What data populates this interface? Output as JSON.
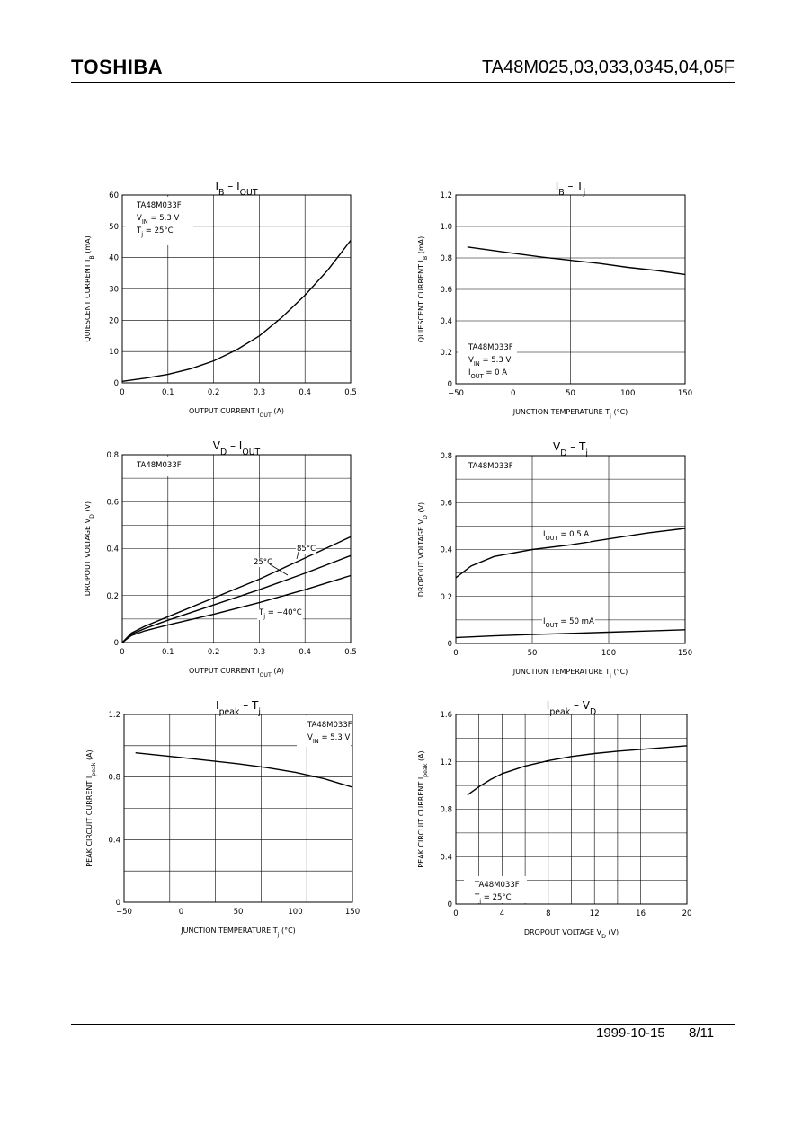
{
  "header": {
    "brand": "TOSHIBA",
    "part_numbers": "TA48M025,03,033,0345,04,05F"
  },
  "footer": {
    "date": "1999-10-15",
    "page": "8/11"
  },
  "chart_data": [
    {
      "type": "line",
      "title": {
        "main": "I",
        "sub": "B",
        "sep": " – ",
        "main2": "I",
        "sub2": "OUT"
      },
      "xlabel": "OUTPUT  CURRENT  I",
      "xlabel_sub": "OUT",
      "xlabel_unit": "(A)",
      "ylabel": "QUIESCENT CURRENT  I",
      "ylabel_sub": "B",
      "ylabel_unit": "(mA)",
      "xlim": [
        0,
        0.5
      ],
      "ylim": [
        0,
        60
      ],
      "xticks": [
        0,
        0.1,
        0.2,
        0.3,
        0.4,
        0.5
      ],
      "yticks": [
        0,
        10,
        20,
        30,
        40,
        50,
        60
      ],
      "x_tick_labels": [
        "0",
        "0.1",
        "0.2",
        "0.3",
        "0.4",
        "0.5"
      ],
      "y_tick_labels": [
        "0",
        "10",
        "20",
        "30",
        "40",
        "50",
        "60"
      ],
      "annotation": [
        "TA48M033F",
        "V_IN = 5.3 V",
        "Tj = 25°C"
      ],
      "series": [
        {
          "x": [
            0,
            0.05,
            0.1,
            0.15,
            0.2,
            0.25,
            0.3,
            0.35,
            0.4,
            0.45,
            0.5
          ],
          "y": [
            0.5,
            1.5,
            2.7,
            4.5,
            7,
            10.5,
            15,
            21,
            28,
            36,
            45.5
          ]
        }
      ]
    },
    {
      "type": "line",
      "title": {
        "main": "I",
        "sub": "B",
        "sep": " – ",
        "main2": "T",
        "sub2": "j"
      },
      "xlabel": "JUNCTION TEMPERATURE  T",
      "xlabel_sub": "j",
      "xlabel_unit": "(°C)",
      "ylabel": "QUIESCENT CURRENT  I",
      "ylabel_sub": "B",
      "ylabel_unit": "(mA)",
      "xlim": [
        -50,
        150
      ],
      "ylim": [
        0,
        1.2
      ],
      "xticks": [
        -50,
        0,
        50,
        100,
        150
      ],
      "yticks": [
        0,
        0.2,
        0.4,
        0.6,
        0.8,
        1.0,
        1.2
      ],
      "x_tick_labels": [
        "−50",
        "0",
        "50",
        "100",
        "150"
      ],
      "y_tick_labels": [
        "0",
        "0.2",
        "0.4",
        "0.6",
        "0.8",
        "1.0",
        "1.2"
      ],
      "annotation": [
        "TA48M033F",
        "V_IN = 5.3 V",
        "I_OUT = 0 A"
      ],
      "series": [
        {
          "x": [
            -40,
            -20,
            0,
            25,
            50,
            75,
            100,
            125,
            150
          ],
          "y": [
            0.87,
            0.85,
            0.83,
            0.805,
            0.785,
            0.765,
            0.74,
            0.72,
            0.695
          ]
        }
      ]
    },
    {
      "type": "line",
      "title": {
        "main": "V",
        "sub": "D",
        "sep": " – ",
        "main2": "I",
        "sub2": "OUT"
      },
      "xlabel": "OUTPUT  CURRENT  I",
      "xlabel_sub": "OUT",
      "xlabel_unit": "(A)",
      "ylabel": "DROPOUT VOLTAGE  V",
      "ylabel_sub": "D",
      "ylabel_unit": "(V)",
      "xlim": [
        0,
        0.5
      ],
      "ylim": [
        0,
        0.8
      ],
      "xticks": [
        0,
        0.1,
        0.2,
        0.3,
        0.4,
        0.5
      ],
      "yticks": [
        0,
        0.2,
        0.4,
        0.6,
        0.8
      ],
      "x_tick_labels": [
        "0",
        "0.1",
        "0.2",
        "0.3",
        "0.4",
        "0.5"
      ],
      "y_tick_labels": [
        "0",
        "0.2",
        "0.4",
        "0.6",
        "0.8"
      ],
      "annotation": [
        "TA48M033F"
      ],
      "series": [
        {
          "name": "85°C",
          "x": [
            0,
            0.02,
            0.05,
            0.1,
            0.2,
            0.3,
            0.4,
            0.5
          ],
          "y": [
            0,
            0.04,
            0.07,
            0.11,
            0.19,
            0.27,
            0.36,
            0.45
          ]
        },
        {
          "name": "25°C",
          "x": [
            0,
            0.02,
            0.05,
            0.1,
            0.2,
            0.3,
            0.4,
            0.5
          ],
          "y": [
            0,
            0.035,
            0.06,
            0.095,
            0.16,
            0.225,
            0.295,
            0.37
          ]
        },
        {
          "name": "Tj = −40°C",
          "x": [
            0,
            0.02,
            0.05,
            0.1,
            0.2,
            0.3,
            0.4,
            0.5
          ],
          "y": [
            0,
            0.03,
            0.05,
            0.075,
            0.12,
            0.17,
            0.225,
            0.285
          ]
        }
      ],
      "series_labels": [
        "85°C",
        "25°C",
        "Tj = −40°C"
      ]
    },
    {
      "type": "line",
      "title": {
        "main": "V",
        "sub": "D",
        "sep": " – ",
        "main2": "T",
        "sub2": "j"
      },
      "xlabel": "JUNCTION TEMPERATURE  T",
      "xlabel_sub": "j",
      "xlabel_unit": "(°C)",
      "ylabel": "DROPOUT VOLTAGE  V",
      "ylabel_sub": "D",
      "ylabel_unit": "(V)",
      "xlim": [
        0,
        150
      ],
      "ylim": [
        0,
        0.8
      ],
      "xticks": [
        0,
        50,
        100,
        150
      ],
      "yticks": [
        0,
        0.2,
        0.4,
        0.6,
        0.8
      ],
      "x_tick_labels": [
        "0",
        "50",
        "100",
        "150"
      ],
      "y_tick_labels": [
        "0",
        "0.2",
        "0.4",
        "0.6",
        "0.8"
      ],
      "annotation": [
        "TA48M033F"
      ],
      "series": [
        {
          "name": "I_OUT = 0.5 A",
          "x": [
            0,
            10,
            25,
            50,
            75,
            100,
            125,
            150
          ],
          "y": [
            0.28,
            0.33,
            0.37,
            0.4,
            0.42,
            0.445,
            0.47,
            0.49
          ]
        },
        {
          "name": "I_OUT = 50 mA",
          "x": [
            0,
            25,
            50,
            75,
            100,
            125,
            150
          ],
          "y": [
            0.025,
            0.032,
            0.038,
            0.043,
            0.048,
            0.053,
            0.058
          ]
        }
      ],
      "series_labels": [
        "I_OUT = 0.5 A",
        "I_OUT = 50 mA"
      ]
    },
    {
      "type": "line",
      "title": {
        "main": "I",
        "sub": "peak",
        "sep": " – ",
        "main2": "T",
        "sub2": "j"
      },
      "xlabel": "JUNCTION TEMPERATURE  T",
      "xlabel_sub": "j",
      "xlabel_unit": "(°C)",
      "ylabel": "PEAK CIRCUIT CURRENT  I",
      "ylabel_sub": "peak",
      "ylabel_unit": "(A)",
      "xlim": [
        -50,
        150
      ],
      "ylim": [
        0,
        1.2
      ],
      "xticks": [
        -50,
        0,
        50,
        100,
        150
      ],
      "yticks": [
        0,
        0.4,
        0.8,
        1.2
      ],
      "x_tick_labels": [
        "−50",
        "0",
        "50",
        "100",
        "150"
      ],
      "y_tick_labels": [
        "0",
        "0.4",
        "0.8",
        "1.2"
      ],
      "annotation": [
        "TA48M033F",
        "V_IN = 5.3 V"
      ],
      "series": [
        {
          "x": [
            -40,
            -20,
            0,
            25,
            50,
            75,
            100,
            125,
            150
          ],
          "y": [
            0.955,
            0.94,
            0.925,
            0.905,
            0.885,
            0.86,
            0.83,
            0.79,
            0.735
          ]
        }
      ]
    },
    {
      "type": "line",
      "title": {
        "main": "I",
        "sub": "peak",
        "sep": " – ",
        "main2": "V",
        "sub2": "D"
      },
      "xlabel": "DROPOUT VOLTAGE  V",
      "xlabel_sub": "D",
      "xlabel_unit": "(V)",
      "ylabel": "PEAK CIRCUIT CURRENT  I",
      "ylabel_sub": "peak",
      "ylabel_unit": "(A)",
      "xlim": [
        0,
        20
      ],
      "ylim": [
        0,
        1.6
      ],
      "xticks": [
        0,
        4,
        8,
        12,
        16,
        20
      ],
      "yticks": [
        0,
        0.4,
        0.8,
        1.2,
        1.6
      ],
      "x_tick_labels": [
        "0",
        "4",
        "8",
        "12",
        "16",
        "20"
      ],
      "y_tick_labels": [
        "0",
        "0.4",
        "0.8",
        "1.2",
        "1.6"
      ],
      "annotation": [
        "TA48M033F",
        "Tj = 25°C"
      ],
      "series": [
        {
          "x": [
            1,
            2,
            3,
            4,
            6,
            8,
            10,
            12,
            14,
            16,
            18,
            20
          ],
          "y": [
            0.92,
            0.99,
            1.05,
            1.1,
            1.165,
            1.21,
            1.245,
            1.27,
            1.29,
            1.305,
            1.32,
            1.335
          ]
        }
      ]
    }
  ]
}
